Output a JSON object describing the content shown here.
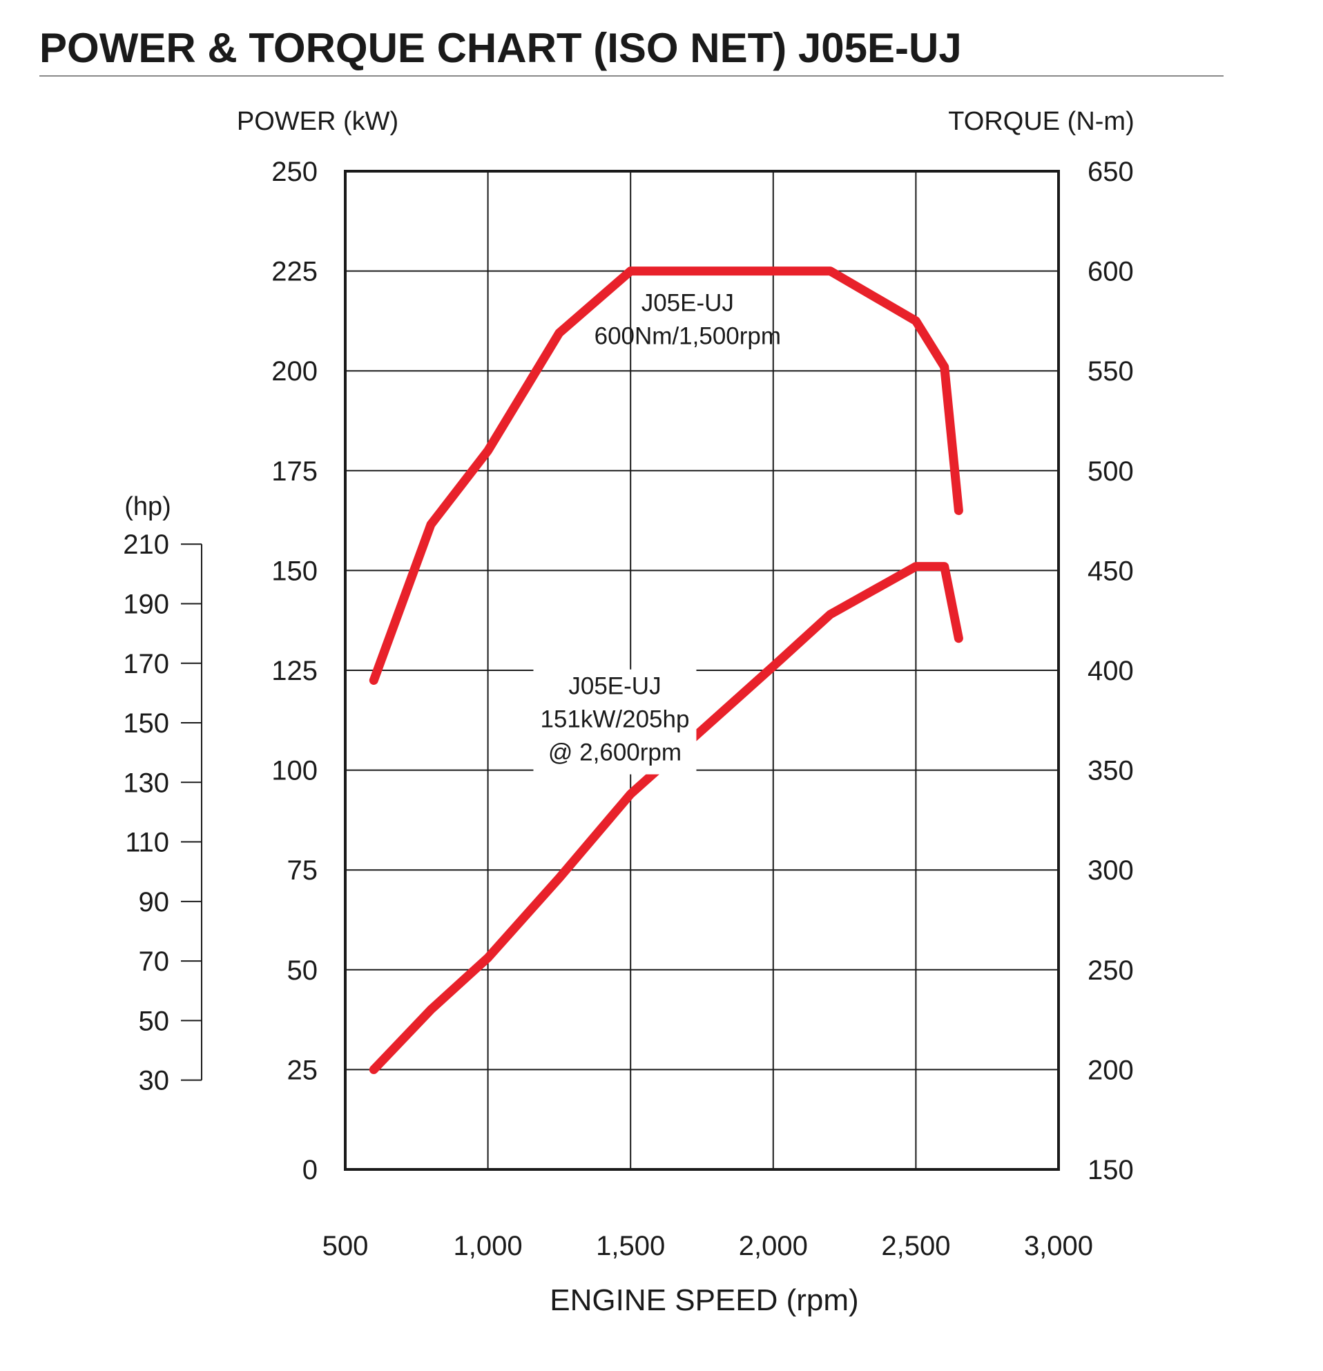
{
  "chart_data": {
    "type": "line",
    "title": "POWER & TORQUE CHART (ISO NET) J05E-UJ",
    "xlabel": "ENGINE SPEED (rpm)",
    "ylabel_left": "POWER (kW)",
    "ylabel_right": "TORQUE (N-m)",
    "ylabel_hp": "(hp)",
    "xlim": [
      500,
      3000
    ],
    "ylim_left": [
      0,
      250
    ],
    "ylim_right": [
      150,
      650
    ],
    "hp_range": [
      30,
      210
    ],
    "x_ticks": [
      "500",
      "1,000",
      "1,500",
      "2,000",
      "2,500",
      "3,000"
    ],
    "y_left_ticks": [
      "0",
      "25",
      "50",
      "75",
      "100",
      "125",
      "150",
      "175",
      "200",
      "225",
      "250"
    ],
    "y_right_ticks": [
      "150",
      "200",
      "250",
      "300",
      "350",
      "400",
      "450",
      "500",
      "550",
      "600",
      "650"
    ],
    "hp_ticks": [
      "30",
      "50",
      "70",
      "90",
      "110",
      "130",
      "150",
      "170",
      "190",
      "210"
    ],
    "grid": true,
    "line_color": "#e8212a",
    "series": [
      {
        "name": "J05E-UJ",
        "axis": "right",
        "x": [
          600,
          800,
          1000,
          1250,
          1500,
          2200,
          2500,
          2600,
          2650
        ],
        "y": [
          395,
          473,
          510,
          569,
          600,
          600,
          575,
          552,
          480
        ]
      },
      {
        "name": "J05E-UJ",
        "axis": "left",
        "x": [
          600,
          800,
          1000,
          1250,
          1500,
          2000,
          2200,
          2500,
          2600,
          2650
        ],
        "y": [
          25,
          40,
          53,
          73,
          94,
          126,
          139,
          151,
          151,
          133
        ]
      }
    ],
    "annotations": [
      {
        "lines": [
          "J05E-UJ",
          "600Nm/1,500rpm"
        ]
      },
      {
        "lines": [
          "J05E-UJ",
          "151kW/205hp",
          "@ 2,600rpm"
        ]
      }
    ]
  }
}
